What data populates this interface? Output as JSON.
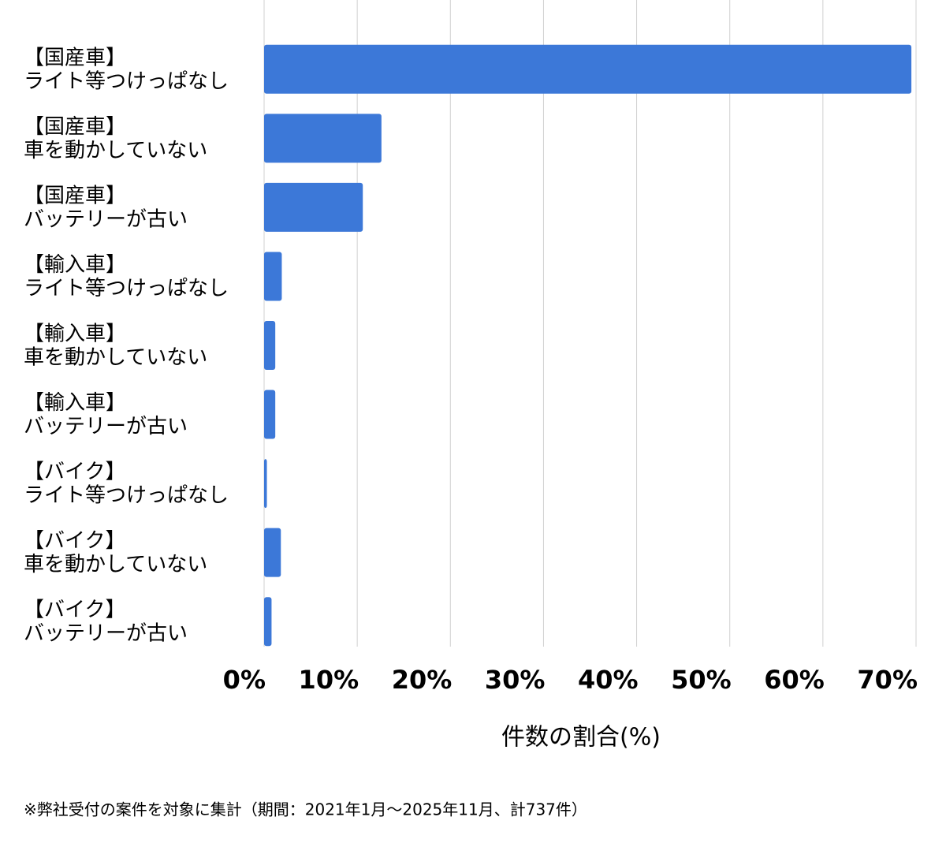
{
  "chart_data": {
    "type": "bar",
    "orientation": "horizontal",
    "categories": [
      [
        "【国産車】",
        "ライト等つけっぱなし"
      ],
      [
        "【国産車】",
        "車を動かしていない"
      ],
      [
        "【国産車】",
        "バッテリーが古い"
      ],
      [
        "【輸入車】",
        "ライト等つけっぱなし"
      ],
      [
        "【輸入車】",
        "車を動かしていない"
      ],
      [
        "【輸入車】",
        "バッテリーが古い"
      ],
      [
        "【バイク】",
        "ライト等つけっぱなし"
      ],
      [
        "【バイク】",
        "車を動かしていない"
      ],
      [
        "【バイク】",
        "バッテリーが古い"
      ]
    ],
    "values": [
      69.5,
      12.6,
      10.6,
      1.9,
      1.2,
      1.2,
      0.3,
      1.8,
      0.8
    ],
    "color": "#3c78d8",
    "xlim": [
      0,
      70
    ],
    "xticks": [
      {
        "value": 0,
        "label": "0%"
      },
      {
        "value": 10,
        "label": "10%"
      },
      {
        "value": 20,
        "label": "20%"
      },
      {
        "value": 30,
        "label": "30%"
      },
      {
        "value": 40,
        "label": "40%"
      },
      {
        "value": 50,
        "label": "50%"
      },
      {
        "value": 60,
        "label": "60%"
      },
      {
        "value": 70,
        "label": "70%"
      }
    ],
    "xlabel": "件数の割合(%)",
    "grid": true,
    "footnote": "※弊社受付の案件を対象に集計（期間：2021年1月～2025年11月、計737件）"
  }
}
